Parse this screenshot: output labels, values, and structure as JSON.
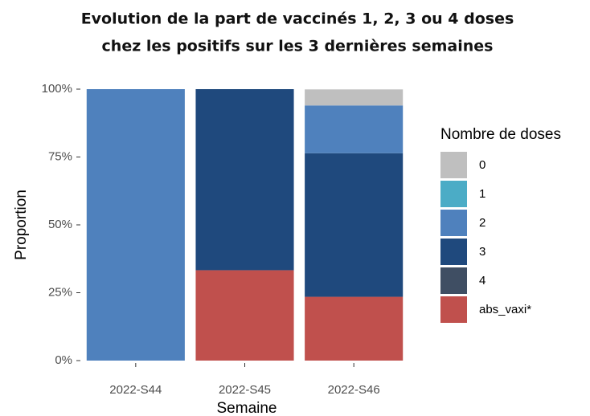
{
  "chart_data": {
    "type": "stacked_bar",
    "title": [
      "Evolution de la part de vaccinés 1, 2, 3 ou 4 doses",
      "chez les positifs sur les 3 dernières semaines"
    ],
    "x_label": "Semaine",
    "y_label": "Proportion",
    "legend_title": "Nombre de doses",
    "legend": "right",
    "categories": [
      "2022-S44",
      "2022-S45",
      "2022-S46"
    ],
    "series": [
      {
        "name": "0",
        "color": "#bfbfbf",
        "values": [
          0,
          0,
          5.9
        ]
      },
      {
        "name": "1",
        "color": "#4bacc6",
        "values": [
          0,
          0,
          0
        ]
      },
      {
        "name": "2",
        "color": "#4f81bd",
        "values": [
          100,
          0,
          17.6
        ]
      },
      {
        "name": "3",
        "color": "#1f497d",
        "values": [
          0,
          66.7,
          52.9
        ]
      },
      {
        "name": "4",
        "color": "#3f4e63",
        "values": [
          0,
          0,
          0
        ]
      },
      {
        "name": "abs_vaxi*",
        "color": "#c0504d",
        "values": [
          0,
          33.3,
          23.5
        ]
      }
    ],
    "ylim": [
      0,
      100
    ],
    "yticks": [
      {
        "value": 0,
        "label": "0%"
      },
      {
        "value": 25,
        "label": "25%"
      },
      {
        "value": 50,
        "label": "50%"
      },
      {
        "value": 75,
        "label": "75%"
      },
      {
        "value": 100,
        "label": "100%"
      }
    ]
  }
}
